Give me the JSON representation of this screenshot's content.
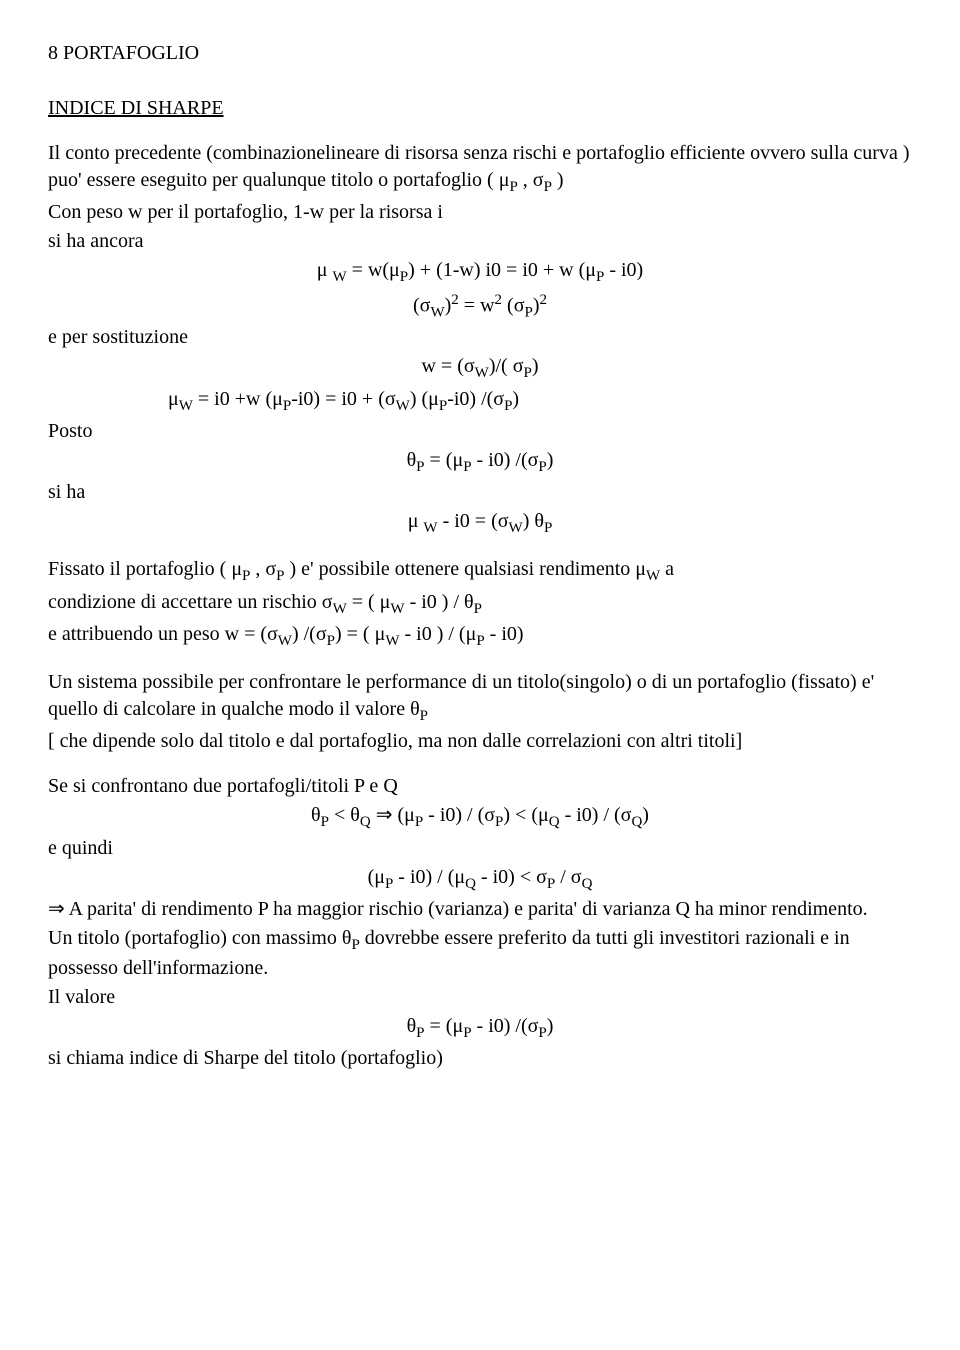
{
  "pageNumber": "8",
  "pageTopic": "PORTAFOGLIO",
  "heading": "INDICE DI SHARPE",
  "p1a": "Il conto precedente (combinazionelineare di risorsa senza rischi e portafoglio efficiente ovvero sulla curva ) puo' essere eseguito per qualunque titolo  o portafoglio ( μ",
  "p1sub1": "P",
  "p1b": " , σ",
  "p1sub2": "P",
  "p1c": " )",
  "p2": "Con  peso w per il portafoglio, 1-w per la risorsa i",
  "p3": "si ha ancora",
  "eq1a": "μ ",
  "eq1sub": "W",
  "eq1b": " = w(μ",
  "eq1sub2": "P",
  "eq1c": ") + (1-w) i0 =  i0 + w (μ",
  "eq1sub3": "P",
  "eq1d": " - i0)",
  "eq2a": "(σ",
  "eq2sub1": "W",
  "eq2b": ")",
  "eq2sup1": "2",
  "eq2c": "  =   w",
  "eq2sup2": "2",
  "eq2d": " (σ",
  "eq2sub2": "P",
  "eq2e": ")",
  "eq2sup3": "2",
  "p4": "e per sostituzione",
  "eq3a": "w  =  (σ",
  "eq3sub1": "W",
  "eq3b": ")/( σ",
  "eq3sub2": "P",
  "eq3c": ")",
  "eq4a": "μ",
  "eq4sub1": "W",
  "eq4b": "  =   i0 +w (μ",
  "eq4sub2": "P",
  "eq4c": "-i0)  =  i0 +  (σ",
  "eq4sub3": "W",
  "eq4d": ") (μ",
  "eq4sub4": "P",
  "eq4e": "-i0) /(σ",
  "eq4sub5": "P",
  "eq4f": ")",
  "p5": "Posto",
  "eq5a": "θ",
  "eq5sub1": "P",
  "eq5b": "  =  (μ",
  "eq5sub2": "P",
  "eq5c": " - i0) /(σ",
  "eq5sub3": "P",
  "eq5d": ")",
  "p6": "si ha",
  "eq6a": "μ ",
  "eq6sub1": "W",
  "eq6b": " - i0  =  (σ",
  "eq6sub2": "W",
  "eq6c": ") θ",
  "eq6sub3": "P",
  "p7a": "Fissato il portafoglio ( μ",
  "p7sub1": "P",
  "p7b": " , σ",
  "p7sub2": "P",
  "p7c": " ) e' possibile ottenere qualsiasi rendimento μ",
  "p7sub3": "W",
  "p7d": "  a",
  "p8a": "condizione di accettare un rischio  σ",
  "p8sub1": "W",
  "p8b": "  =  ( μ",
  "p8sub2": "W",
  "p8c": " - i0 ) / θ",
  "p8sub3": "P",
  "p9a": "e attribuendo un peso w  =  (σ",
  "p9sub1": "W",
  "p9b": ") /(σ",
  "p9sub2": "P",
  "p9c": ") = ( μ",
  "p9sub3": "W",
  "p9d": " - i0 ) / (μ",
  "p9sub4": "P",
  "p9e": " - i0)",
  "p10a": "Un sistema possibile per confrontare le performance di un titolo(singolo) o di un portafoglio (fissato) e' quello di calcolare in qualche modo il valore θ",
  "p10sub1": "P",
  "p11": "[ che dipende solo dal titolo e dal portafoglio, ma non dalle correlazioni con altri titoli]",
  "p12": "Se si confrontano due portafogli/titoli  P e Q",
  "eq7a": "θ",
  "eq7sub1": "P",
  "eq7b": " < θ",
  "eq7sub2": "Q",
  "eq7c": "   ⇒   (μ",
  "eq7sub3": "P",
  "eq7d": " - i0) / (σ",
  "eq7sub4": "P",
  "eq7e": ")  <  (μ",
  "eq7sub5": "Q",
  "eq7f": " - i0) / (σ",
  "eq7sub6": "Q",
  "eq7g": ")",
  "p13": "e quindi",
  "eq8a": "(μ",
  "eq8sub1": "P",
  "eq8b": " - i0) / (μ",
  "eq8sub2": "Q",
  "eq8c": " - i0) <  σ",
  "eq8sub3": "P",
  "eq8d": " / σ",
  "eq8sub4": "Q",
  "p14": "⇒  A parita' di rendimento P ha maggior rischio (varianza) e parita' di varianza Q ha minor rendimento.",
  "p15a": "Un titolo (portafoglio) con massimo θ",
  "p15sub1": "P",
  "p15b": " dovrebbe essere preferito da tutti gli investitori razionali e in possesso dell'informazione.",
  "p16": "Il valore",
  "eq9a": "θ",
  "eq9sub1": "P",
  "eq9b": " =  (μ",
  "eq9sub2": "P",
  "eq9c": " - i0) /(σ",
  "eq9sub3": "P",
  "eq9d": ")",
  "p17": "si chiama indice di Sharpe del titolo (portafoglio)"
}
